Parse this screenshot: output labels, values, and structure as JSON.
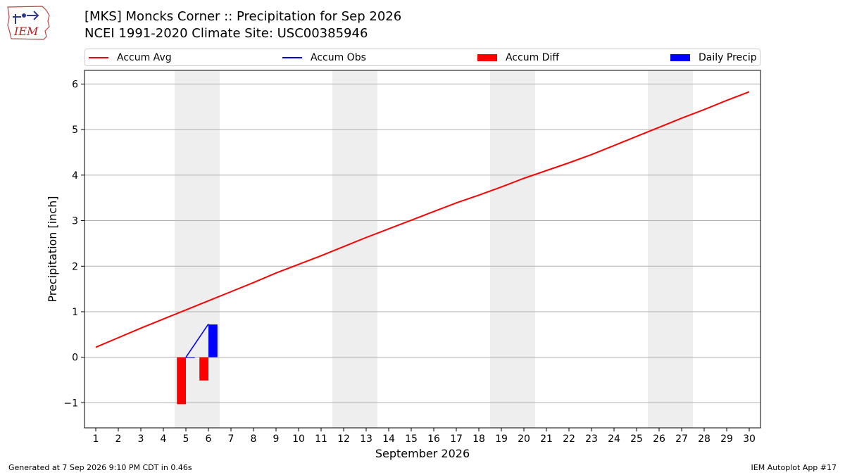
{
  "header": {
    "title_line1": "[MKS] Moncks Corner :: Precipitation for Sep 2026",
    "title_line2": "NCEI 1991-2020 Climate Site: USC00385946"
  },
  "logo": {
    "text": "IEM",
    "icon": "iowa-state-outline-logo"
  },
  "legend": {
    "placement": "top, above plot",
    "items": [
      {
        "label": "Accum Avg",
        "kind": "line",
        "color": "#ff0000"
      },
      {
        "label": "Accum Obs",
        "kind": "line",
        "color": "#0000ff"
      },
      {
        "label": "Accum Diff",
        "kind": "bar",
        "color": "#ff0000"
      },
      {
        "label": "Daily Precip",
        "kind": "bar",
        "color": "#0000ff"
      }
    ]
  },
  "chart_data": {
    "type": "line",
    "xlabel": "September 2026",
    "ylabel": "Precipitation [inch]",
    "x": [
      1,
      2,
      3,
      4,
      5,
      6,
      7,
      8,
      9,
      10,
      11,
      12,
      13,
      14,
      15,
      16,
      17,
      18,
      19,
      20,
      21,
      22,
      23,
      24,
      25,
      26,
      27,
      28,
      29,
      30
    ],
    "xlim": [
      0.5,
      30.5
    ],
    "ylim": [
      -1.55,
      6.3
    ],
    "yticks": [
      -1,
      0,
      1,
      2,
      3,
      4,
      5,
      6
    ],
    "ytick_labels": [
      "−1",
      "0",
      "1",
      "2",
      "3",
      "4",
      "5",
      "6"
    ],
    "grid": "horizontal",
    "weekend_shading": [
      [
        4.5,
        6.5
      ],
      [
        11.5,
        13.5
      ],
      [
        18.5,
        20.5
      ],
      [
        25.5,
        27.5
      ]
    ],
    "series": [
      {
        "name": "Accum Avg",
        "kind": "line",
        "color": "#ff0000",
        "x": [
          1,
          2,
          3,
          4,
          5,
          6,
          7,
          8,
          9,
          10,
          11,
          12,
          13,
          14,
          15,
          16,
          17,
          18,
          19,
          20,
          21,
          22,
          23,
          24,
          25,
          26,
          27,
          28,
          29,
          30
        ],
        "values": [
          0.22,
          0.43,
          0.64,
          0.84,
          1.04,
          1.24,
          1.44,
          1.64,
          1.85,
          2.04,
          2.23,
          2.43,
          2.63,
          2.82,
          3.01,
          3.2,
          3.39,
          3.56,
          3.74,
          3.93,
          4.1,
          4.27,
          4.45,
          4.65,
          4.85,
          5.05,
          5.25,
          5.44,
          5.64,
          5.83
        ]
      },
      {
        "name": "Accum Obs",
        "kind": "line",
        "color": "#0000ff",
        "x": [
          5,
          6
        ],
        "values": [
          0.0,
          0.73
        ]
      },
      {
        "name": "Accum Diff",
        "kind": "bar",
        "color": "#ff0000",
        "x": [
          5,
          6
        ],
        "values": [
          -1.03,
          -0.51
        ]
      },
      {
        "name": "Daily Precip",
        "kind": "bar",
        "color": "#0000ff",
        "x": [
          5,
          6
        ],
        "values": [
          0.0,
          0.72
        ]
      }
    ]
  },
  "footer": {
    "left": "Generated at 7 Sep 2026 9:10 PM CDT in 0.46s",
    "right": "IEM Autoplot App #17"
  }
}
